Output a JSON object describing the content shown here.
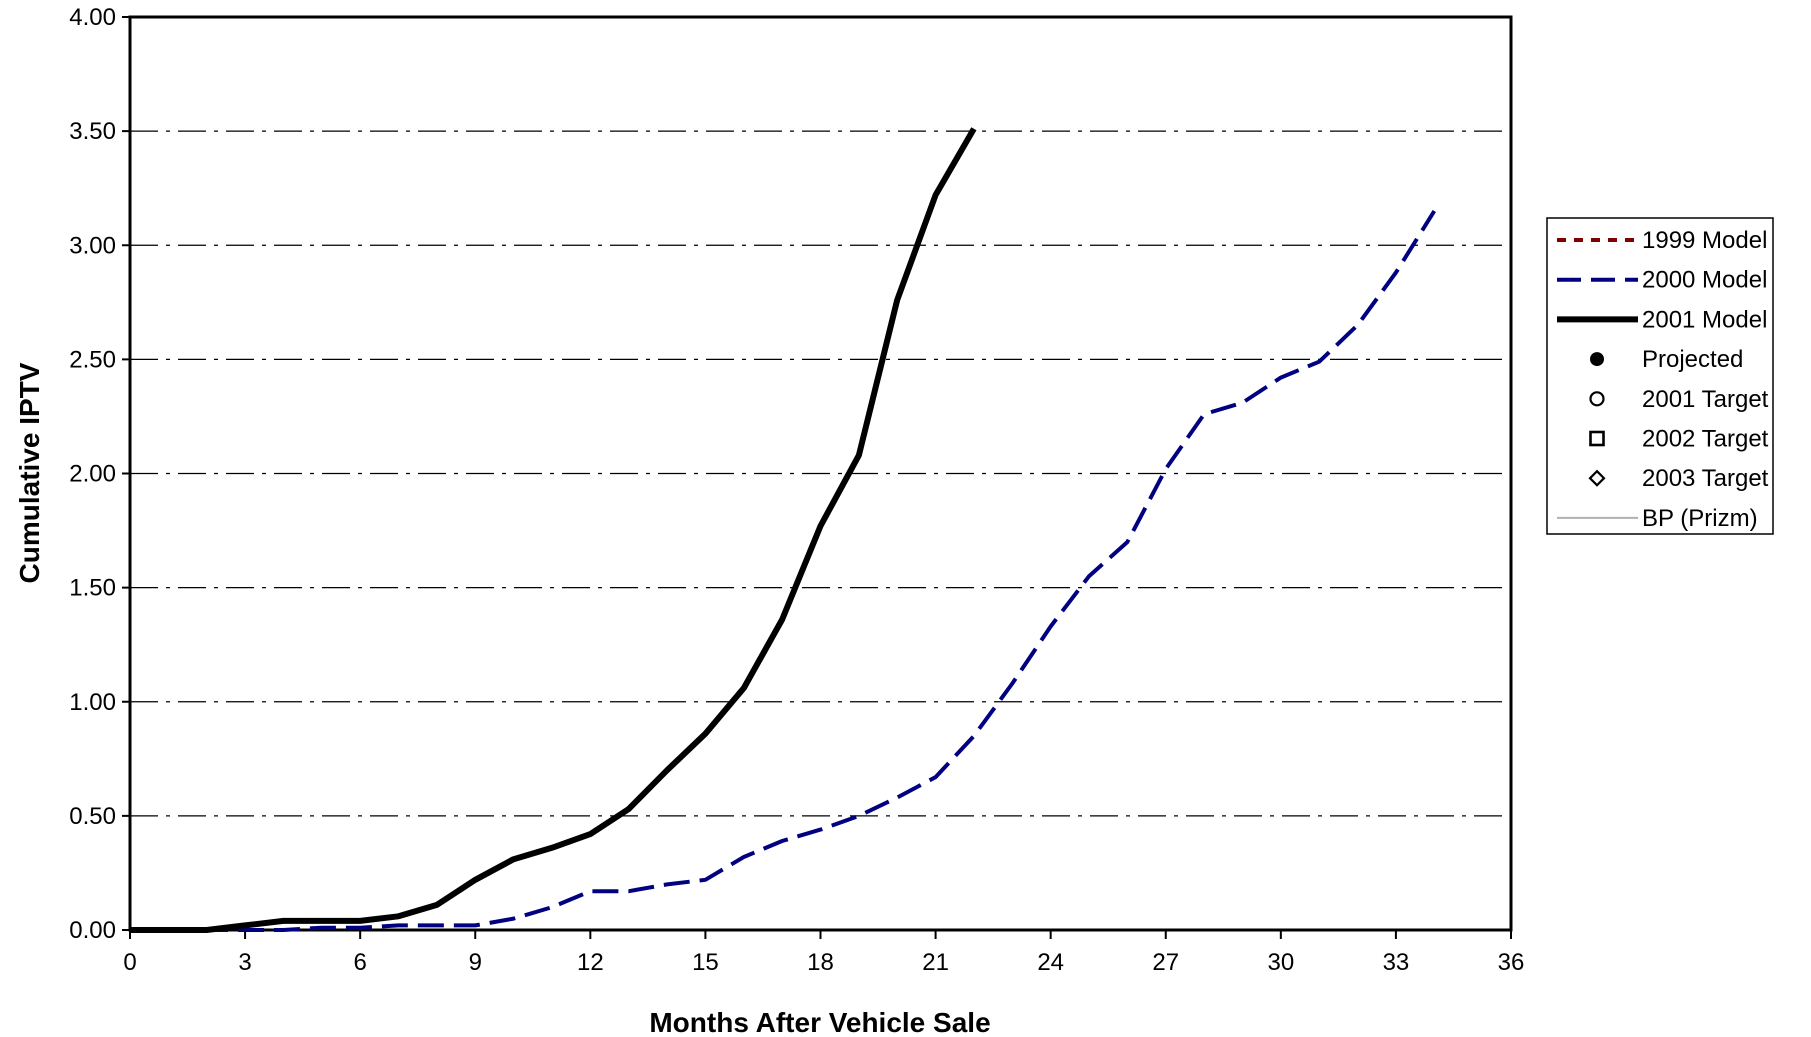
{
  "chart_data": {
    "type": "line",
    "title": "",
    "xlabel": "Months After Vehicle Sale",
    "ylabel": "Cumulative IPTV",
    "xlim": [
      0,
      36
    ],
    "ylim": [
      0,
      4
    ],
    "x_ticks": [
      "0",
      "3",
      "6",
      "9",
      "12",
      "15",
      "18",
      "21",
      "24",
      "27",
      "30",
      "33",
      "36"
    ],
    "y_ticks": [
      "0.00",
      "0.50",
      "1.00",
      "1.50",
      "2.00",
      "2.50",
      "3.00",
      "3.50",
      "4.00"
    ],
    "grid": "horizontal dash-dot",
    "legend_position": "right",
    "legend": [
      {
        "label": "1999 Model",
        "kind": "line",
        "color": "#7f0000",
        "dash": "short-dash"
      },
      {
        "label": "2000 Model",
        "kind": "line",
        "color": "#000080",
        "dash": "long-dash"
      },
      {
        "label": "2001 Model",
        "kind": "line",
        "color": "#000000",
        "dash": "solid-thick"
      },
      {
        "label": "Projected",
        "kind": "marker",
        "marker": "filled-circle"
      },
      {
        "label": "2001 Target",
        "kind": "marker",
        "marker": "open-circle"
      },
      {
        "label": "2002 Target",
        "kind": "marker",
        "marker": "open-square"
      },
      {
        "label": "2003 Target",
        "kind": "marker",
        "marker": "open-diamond"
      },
      {
        "label": "BP (Prizm)",
        "kind": "line",
        "color": "#b0b0b0",
        "dash": "solid-thin"
      }
    ],
    "series": [
      {
        "name": "2000 Model",
        "color": "#000080",
        "x": [
          0,
          1,
          2,
          3,
          4,
          5,
          6,
          7,
          8,
          9,
          10,
          11,
          12,
          13,
          14,
          15,
          16,
          17,
          18,
          19,
          20,
          21,
          22,
          23,
          24,
          25,
          26,
          27,
          28,
          29,
          30,
          31,
          32,
          33,
          34
        ],
        "values": [
          0,
          0,
          0,
          0,
          0,
          0.01,
          0.01,
          0.02,
          0.02,
          0.02,
          0.05,
          0.1,
          0.17,
          0.17,
          0.2,
          0.22,
          0.32,
          0.39,
          0.44,
          0.5,
          0.58,
          0.67,
          0.85,
          1.08,
          1.33,
          1.55,
          1.7,
          2.02,
          2.26,
          2.31,
          2.42,
          2.49,
          2.65,
          2.88,
          3.15
        ]
      },
      {
        "name": "2001 Model",
        "color": "#000000",
        "x": [
          0,
          1,
          2,
          3,
          4,
          5,
          6,
          7,
          8,
          9,
          10,
          11,
          12,
          13,
          14,
          15,
          16,
          17,
          18,
          19,
          20,
          21,
          22
        ],
        "values": [
          0,
          0,
          0,
          0.02,
          0.04,
          0.04,
          0.04,
          0.06,
          0.11,
          0.22,
          0.31,
          0.36,
          0.42,
          0.53,
          0.7,
          0.86,
          1.06,
          1.36,
          1.77,
          2.08,
          2.76,
          3.22,
          3.51
        ]
      }
    ]
  }
}
